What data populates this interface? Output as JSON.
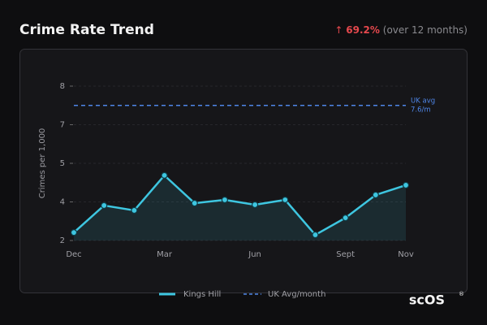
{
  "header": {
    "title": "Crime Rate Trend",
    "change_arrow": "↑",
    "change": "69.2%",
    "change_note": "(over 12 months)"
  },
  "chart_data": {
    "type": "line",
    "y_label": "Crimes per 1,000",
    "categories": [
      "Dec",
      null,
      null,
      "Mar",
      null,
      null,
      "Jun",
      null,
      null,
      "Sept",
      null,
      "Nov"
    ],
    "series": [
      {
        "name": "Kings Hill",
        "color": "#3ec6e0",
        "values": [
          2.66,
          3.71,
          3.52,
          4.88,
          3.8,
          3.93,
          3.74,
          3.93,
          2.57,
          3.23,
          4.12,
          4.5
        ]
      }
    ],
    "reference_line": {
      "name": "UK Avg/month",
      "value": 7.6,
      "color": "#4f86e8",
      "annotation": [
        "UK avg",
        "7.6/m"
      ]
    },
    "ylim": [
      2.35,
      8.35
    ],
    "yticks": [
      {
        "value": 2.35,
        "label": "2"
      },
      {
        "value": 3.85,
        "label": "4"
      },
      {
        "value": 5.35,
        "label": "5"
      },
      {
        "value": 6.85,
        "label": "7"
      },
      {
        "value": 8.35,
        "label": "8"
      }
    ],
    "grid": true,
    "legend": "bottom"
  },
  "watermark": "scOS",
  "watermark_mark": "®"
}
